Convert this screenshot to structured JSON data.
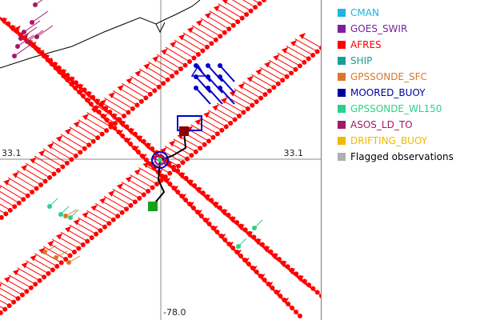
{
  "map": {
    "lat_label_left": "33.1",
    "lat_label_right": "33.1",
    "lon_label_bottom": "-78.0"
  },
  "legend": {
    "items": [
      {
        "label": "CMAN",
        "color": "#1ab5e0",
        "text_color": "#1ab5e0"
      },
      {
        "label": "GOES_SWIR",
        "color": "#7a1fa0",
        "text_color": "#7a1fa0"
      },
      {
        "label": "AFRES",
        "color": "#ff0000",
        "text_color": "#ff0000"
      },
      {
        "label": "SHIP",
        "color": "#1a9e94",
        "text_color": "#1a9e94"
      },
      {
        "label": "GPSSONDE_SFC",
        "color": "#d8782a",
        "text_color": "#d8782a"
      },
      {
        "label": "MOORED_BUOY",
        "color": "#0000a0",
        "text_color": "#0000a0"
      },
      {
        "label": "GPSSONDE_WL150",
        "color": "#2bd08a",
        "text_color": "#2bd08a"
      },
      {
        "label": "ASOS_LD_TO",
        "color": "#a01a68",
        "text_color": "#a01a68"
      },
      {
        "label": "DRIFTING_BUOY",
        "color": "#f0b800",
        "text_color": "#f0b800"
      },
      {
        "label": "Flagged observations",
        "color": "#b0b0b0",
        "text_color": "#000000"
      }
    ]
  },
  "colors": {
    "afres": "#ff0000",
    "moored": "#0000c8",
    "asos": "#a01a68",
    "gpssonde_wl150": "#2bd08a",
    "gpssonde_sfc": "#d8782a",
    "ship": "#1a9e94",
    "coast": "#000000",
    "track": "#000000",
    "grid": "#888888",
    "center_green": "#18a018",
    "center_dark_red": "#8b0000"
  }
}
